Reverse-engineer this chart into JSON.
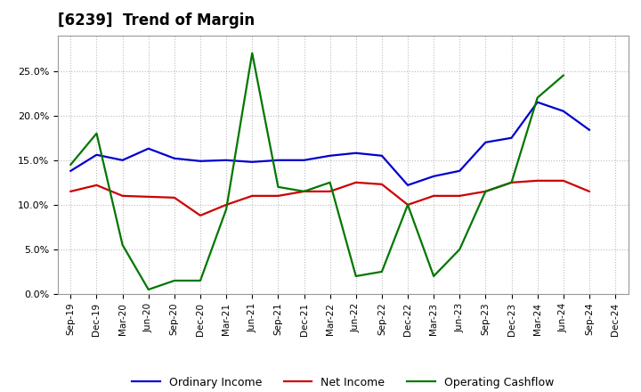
{
  "title": "[6239]  Trend of Margin",
  "x_labels": [
    "Sep-19",
    "Dec-19",
    "Mar-20",
    "Jun-20",
    "Sep-20",
    "Dec-20",
    "Mar-21",
    "Jun-21",
    "Sep-21",
    "Dec-21",
    "Mar-22",
    "Jun-22",
    "Sep-22",
    "Dec-22",
    "Mar-23",
    "Jun-23",
    "Sep-23",
    "Dec-23",
    "Mar-24",
    "Jun-24",
    "Sep-24",
    "Dec-24"
  ],
  "ordinary_income": [
    0.138,
    0.156,
    0.15,
    0.163,
    0.152,
    0.149,
    0.15,
    0.148,
    0.15,
    0.15,
    0.155,
    0.158,
    0.155,
    0.122,
    0.132,
    0.138,
    0.17,
    0.175,
    0.215,
    0.205,
    0.184,
    null
  ],
  "net_income": [
    0.115,
    0.122,
    0.11,
    0.109,
    0.108,
    0.088,
    0.1,
    0.11,
    0.11,
    0.115,
    0.115,
    0.125,
    0.123,
    0.1,
    0.11,
    0.11,
    0.115,
    0.125,
    0.127,
    0.127,
    0.115,
    null
  ],
  "operating_cashflow": [
    0.145,
    0.18,
    0.055,
    0.005,
    0.015,
    0.015,
    0.095,
    0.27,
    0.12,
    0.115,
    0.125,
    0.02,
    0.025,
    0.1,
    0.02,
    0.05,
    0.115,
    0.125,
    0.22,
    0.245,
    null,
    null
  ],
  "line_color_blue": "#0000CC",
  "line_color_red": "#CC0000",
  "line_color_green": "#007700",
  "ylim": [
    0.0,
    0.29
  ],
  "yticks": [
    0.0,
    0.05,
    0.1,
    0.15,
    0.2,
    0.25
  ],
  "background_color": "#FFFFFF",
  "grid_color": "#BBBBBB",
  "title_fontsize": 12,
  "legend_labels": [
    "Ordinary Income",
    "Net Income",
    "Operating Cashflow"
  ]
}
